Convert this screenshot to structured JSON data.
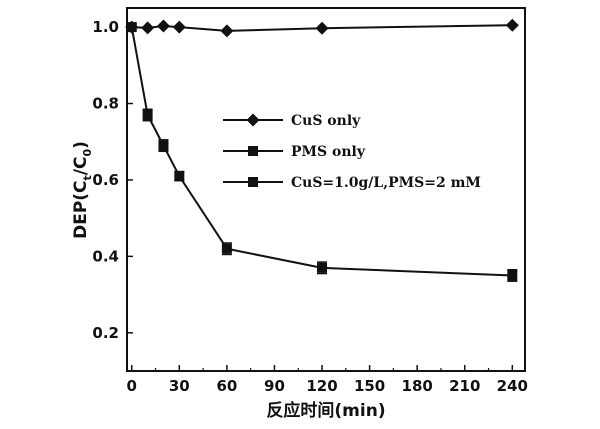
{
  "chart_data": {
    "type": "line",
    "xlabel": "反应时间(min)",
    "ylabel": "DEP(C/C)",
    "ylabel_sub_t": "t",
    "ylabel_sub_0": "0",
    "xlim": [
      -3,
      248
    ],
    "ylim": [
      0.1,
      1.05
    ],
    "xticks": [
      0,
      30,
      60,
      90,
      120,
      150,
      180,
      210,
      240
    ],
    "yticks": [
      0.2,
      0.4,
      0.6,
      0.8,
      1.0
    ],
    "ytick_labels": [
      "0.2",
      "0.4",
      "0.6",
      "0.8",
      "1.0"
    ],
    "legend_position": "center",
    "series": [
      {
        "name": "CuS only",
        "marker": "diamond",
        "x": [
          0,
          10,
          20,
          30,
          60,
          120,
          240
        ],
        "y": [
          1.0,
          0.998,
          1.003,
          1.0,
          0.99,
          0.997,
          1.005
        ]
      },
      {
        "name": "PMS only",
        "marker": "square",
        "x": [],
        "y": []
      },
      {
        "name": "CuS=1.0g/L,PMS=2 mM",
        "marker": "square",
        "x": [
          0,
          10,
          20,
          30,
          60,
          120,
          240
        ],
        "y": [
          1.0,
          0.77,
          0.69,
          0.61,
          0.42,
          0.37,
          0.35
        ],
        "err": [
          0,
          0.015,
          0.015,
          0.012,
          0.015,
          0.015,
          0.015
        ]
      }
    ]
  }
}
